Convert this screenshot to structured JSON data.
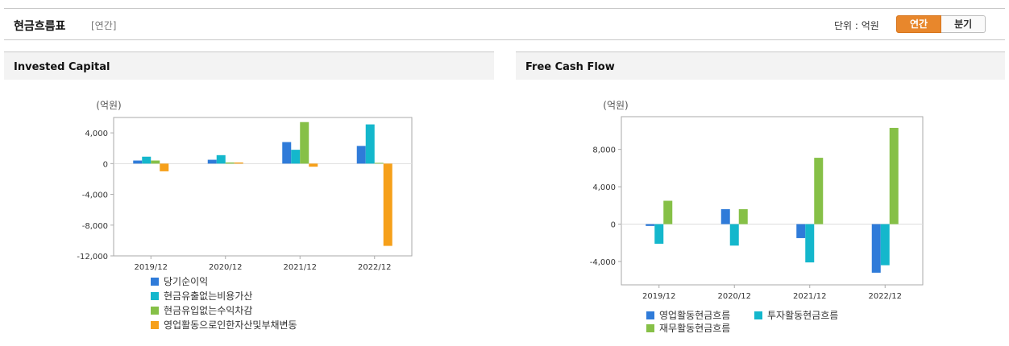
{
  "header": {
    "title": "현금흐름표",
    "subtitle": "[연간]",
    "unit_label": "단위 : 억원",
    "toggle": {
      "annual": "연간",
      "quarterly": "분기"
    }
  },
  "panels": [
    {
      "title": "Invested Capital"
    },
    {
      "title": "Free Cash Flow"
    }
  ],
  "colors": {
    "accent": "#e8872c",
    "blue": "#2f7bd9",
    "cyan": "#14b7cc",
    "green": "#86c047",
    "orange": "#f6a01a"
  },
  "chart_data": [
    {
      "type": "bar",
      "unit": "(억원)",
      "categories": [
        "2019/12",
        "2020/12",
        "2021/12",
        "2022/12"
      ],
      "ylim": [
        -12000,
        6000
      ],
      "yticks": [
        4000,
        0,
        -4000,
        -8000,
        -12000
      ],
      "ytick_labels": [
        "4,000",
        "0",
        "-4,000",
        "-8,000",
        "-12,000"
      ],
      "grid": false,
      "legend_position": "bottom",
      "series": [
        {
          "name": "당기순이익",
          "color": "#2f7bd9",
          "values": [
            400,
            500,
            2800,
            2300
          ]
        },
        {
          "name": "현금유출없는비용가산",
          "color": "#14b7cc",
          "values": [
            900,
            1100,
            1800,
            5100
          ]
        },
        {
          "name": "현금유입없는수익차감",
          "color": "#86c047",
          "values": [
            400,
            150,
            5400,
            100
          ]
        },
        {
          "name": "영업활동으로인한자산및부채변동",
          "color": "#f6a01a",
          "values": [
            -1000,
            150,
            -400,
            -10700
          ]
        }
      ]
    },
    {
      "type": "bar",
      "unit": "(억원)",
      "categories": [
        "2019/12",
        "2020/12",
        "2021/12",
        "2022/12"
      ],
      "ylim": [
        -6500,
        11500
      ],
      "yticks": [
        8000,
        4000,
        0,
        -4000
      ],
      "ytick_labels": [
        "8,000",
        "4,000",
        "0",
        "-4,000"
      ],
      "grid": false,
      "legend_position": "bottom",
      "series": [
        {
          "name": "영업활동현금흐름",
          "color": "#2f7bd9",
          "values": [
            -200,
            1600,
            -1500,
            -5200
          ]
        },
        {
          "name": "투자활동현금흐름",
          "color": "#14b7cc",
          "values": [
            -2100,
            -2300,
            -4100,
            -4400
          ]
        },
        {
          "name": "재무활동현금흐름",
          "color": "#86c047",
          "values": [
            2500,
            1600,
            7100,
            10300
          ]
        }
      ]
    }
  ]
}
